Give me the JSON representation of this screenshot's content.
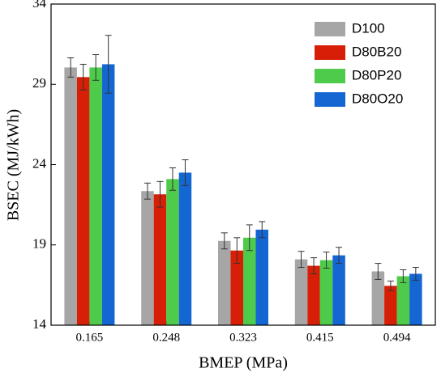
{
  "chart_data": {
    "type": "bar",
    "x_label": "BMEP (MPa)",
    "y_label": "BSEC (MJ/kWh)",
    "categories": [
      "0.165",
      "0.248",
      "0.323",
      "0.415",
      "0.494"
    ],
    "series": [
      {
        "name": "D100",
        "color": "#a6a6a6",
        "values": [
          30.05,
          22.35,
          19.25,
          18.1,
          17.35
        ],
        "errors": [
          0.6,
          0.5,
          0.5,
          0.5,
          0.5
        ]
      },
      {
        "name": "D80B20",
        "color": "#d61f06",
        "values": [
          29.45,
          22.15,
          18.65,
          17.7,
          16.45
        ],
        "errors": [
          0.8,
          0.8,
          0.8,
          0.5,
          0.3
        ]
      },
      {
        "name": "D80P20",
        "color": "#4fcb4b",
        "values": [
          30.05,
          23.1,
          19.45,
          18.05,
          17.05
        ],
        "errors": [
          0.8,
          0.7,
          0.8,
          0.5,
          0.4
        ]
      },
      {
        "name": "D80O20",
        "color": "#1466d2",
        "values": [
          30.25,
          23.5,
          19.95,
          18.35,
          17.2
        ],
        "errors": [
          1.8,
          0.8,
          0.5,
          0.5,
          0.4
        ]
      }
    ],
    "ylim": [
      14,
      34
    ],
    "yticks": [
      14,
      19,
      24,
      29,
      34
    ],
    "legend": "upper right"
  }
}
